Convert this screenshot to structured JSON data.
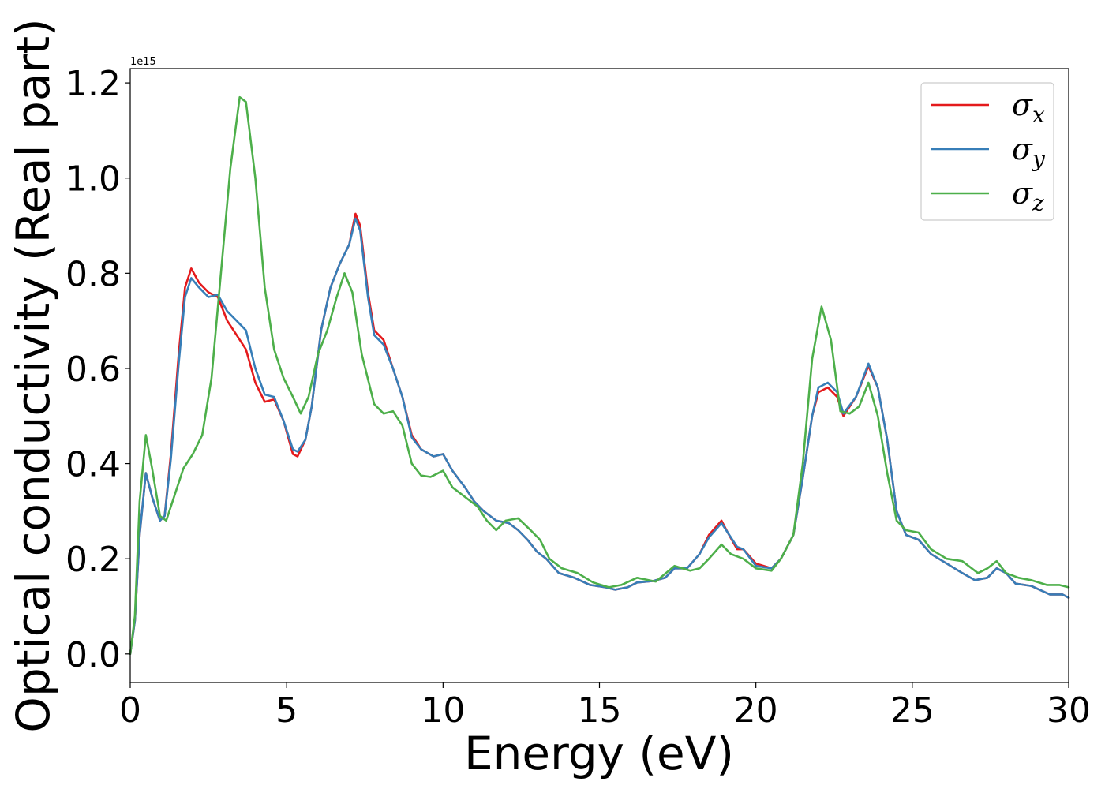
{
  "chart_data": {
    "type": "line",
    "title": "",
    "xlabel": "Energy (eV)",
    "ylabel": "Optical conductivity (Real part)",
    "y_offset_text": "1e15",
    "xlim": [
      0,
      30
    ],
    "ylim": [
      -0.06,
      1.23
    ],
    "x_ticks": [
      0,
      5,
      10,
      15,
      20,
      25,
      30
    ],
    "x_tick_labels": [
      "0",
      "5",
      "10",
      "15",
      "20",
      "25",
      "30"
    ],
    "y_ticks": [
      0.0,
      0.2,
      0.4,
      0.6,
      0.8,
      1.0,
      1.2
    ],
    "y_tick_labels": [
      "0.0",
      "0.2",
      "0.4",
      "0.6",
      "0.8",
      "1.0",
      "1.2"
    ],
    "grid": false,
    "legend_position": "top-right",
    "series": [
      {
        "name": "σx",
        "legend_base": "σ",
        "legend_sub": "x",
        "color": "#e41a1c",
        "points": [
          [
            0,
            0
          ],
          [
            0.15,
            0.07
          ],
          [
            0.3,
            0.25
          ],
          [
            0.5,
            0.38
          ],
          [
            0.7,
            0.33
          ],
          [
            0.95,
            0.28
          ],
          [
            1.1,
            0.29
          ],
          [
            1.3,
            0.42
          ],
          [
            1.55,
            0.63
          ],
          [
            1.75,
            0.77
          ],
          [
            1.95,
            0.81
          ],
          [
            2.2,
            0.78
          ],
          [
            2.5,
            0.76
          ],
          [
            2.8,
            0.75
          ],
          [
            3.1,
            0.7
          ],
          [
            3.4,
            0.67
          ],
          [
            3.7,
            0.64
          ],
          [
            4.0,
            0.57
          ],
          [
            4.3,
            0.53
          ],
          [
            4.6,
            0.535
          ],
          [
            4.9,
            0.49
          ],
          [
            5.2,
            0.42
          ],
          [
            5.35,
            0.415
          ],
          [
            5.6,
            0.45
          ],
          [
            5.8,
            0.52
          ],
          [
            6.1,
            0.68
          ],
          [
            6.4,
            0.77
          ],
          [
            6.7,
            0.82
          ],
          [
            7.0,
            0.86
          ],
          [
            7.2,
            0.925
          ],
          [
            7.35,
            0.9
          ],
          [
            7.6,
            0.76
          ],
          [
            7.8,
            0.68
          ],
          [
            8.1,
            0.66
          ],
          [
            8.4,
            0.6
          ],
          [
            8.7,
            0.54
          ],
          [
            9.0,
            0.46
          ],
          [
            9.3,
            0.43
          ],
          [
            9.7,
            0.415
          ],
          [
            10.0,
            0.42
          ],
          [
            10.3,
            0.385
          ],
          [
            10.7,
            0.35
          ],
          [
            11.0,
            0.32
          ],
          [
            11.3,
            0.3
          ],
          [
            11.7,
            0.28
          ],
          [
            12.1,
            0.275
          ],
          [
            12.4,
            0.26
          ],
          [
            12.7,
            0.24
          ],
          [
            13.0,
            0.215
          ],
          [
            13.3,
            0.2
          ],
          [
            13.7,
            0.17
          ],
          [
            14.2,
            0.16
          ],
          [
            14.7,
            0.145
          ],
          [
            15.2,
            0.14
          ],
          [
            15.5,
            0.135
          ],
          [
            15.9,
            0.14
          ],
          [
            16.2,
            0.15
          ],
          [
            16.7,
            0.153
          ],
          [
            17.1,
            0.16
          ],
          [
            17.4,
            0.18
          ],
          [
            17.8,
            0.18
          ],
          [
            18.2,
            0.21
          ],
          [
            18.5,
            0.25
          ],
          [
            18.9,
            0.28
          ],
          [
            19.1,
            0.255
          ],
          [
            19.4,
            0.22
          ],
          [
            19.6,
            0.22
          ],
          [
            20.0,
            0.19
          ],
          [
            20.5,
            0.18
          ],
          [
            20.8,
            0.2
          ],
          [
            21.2,
            0.25
          ],
          [
            21.5,
            0.37
          ],
          [
            21.8,
            0.5
          ],
          [
            22.0,
            0.55
          ],
          [
            22.3,
            0.56
          ],
          [
            22.6,
            0.54
          ],
          [
            22.8,
            0.5
          ],
          [
            23.2,
            0.54
          ],
          [
            23.6,
            0.605
          ],
          [
            23.9,
            0.56
          ],
          [
            24.2,
            0.45
          ],
          [
            24.5,
            0.3
          ],
          [
            24.8,
            0.25
          ],
          [
            25.2,
            0.24
          ],
          [
            25.6,
            0.21
          ],
          [
            26.1,
            0.19
          ],
          [
            26.6,
            0.17
          ],
          [
            27.0,
            0.155
          ],
          [
            27.4,
            0.16
          ],
          [
            27.7,
            0.18
          ],
          [
            28.0,
            0.17
          ],
          [
            28.3,
            0.148
          ],
          [
            28.8,
            0.143
          ],
          [
            29.4,
            0.125
          ],
          [
            29.8,
            0.125
          ],
          [
            30.0,
            0.118
          ]
        ]
      },
      {
        "name": "σy",
        "legend_base": "σ",
        "legend_sub": "y",
        "color": "#377eb8",
        "points": [
          [
            0,
            0
          ],
          [
            0.15,
            0.07
          ],
          [
            0.3,
            0.25
          ],
          [
            0.5,
            0.38
          ],
          [
            0.7,
            0.33
          ],
          [
            0.95,
            0.28
          ],
          [
            1.1,
            0.29
          ],
          [
            1.3,
            0.41
          ],
          [
            1.55,
            0.61
          ],
          [
            1.75,
            0.75
          ],
          [
            1.95,
            0.79
          ],
          [
            2.2,
            0.77
          ],
          [
            2.5,
            0.75
          ],
          [
            2.8,
            0.755
          ],
          [
            3.1,
            0.72
          ],
          [
            3.4,
            0.7
          ],
          [
            3.7,
            0.68
          ],
          [
            4.0,
            0.6
          ],
          [
            4.3,
            0.545
          ],
          [
            4.6,
            0.54
          ],
          [
            4.9,
            0.49
          ],
          [
            5.2,
            0.43
          ],
          [
            5.35,
            0.425
          ],
          [
            5.6,
            0.45
          ],
          [
            5.8,
            0.52
          ],
          [
            6.1,
            0.68
          ],
          [
            6.4,
            0.77
          ],
          [
            6.7,
            0.82
          ],
          [
            7.0,
            0.86
          ],
          [
            7.2,
            0.915
          ],
          [
            7.35,
            0.89
          ],
          [
            7.6,
            0.75
          ],
          [
            7.8,
            0.67
          ],
          [
            8.1,
            0.65
          ],
          [
            8.4,
            0.6
          ],
          [
            8.7,
            0.54
          ],
          [
            9.0,
            0.455
          ],
          [
            9.3,
            0.43
          ],
          [
            9.7,
            0.415
          ],
          [
            10.0,
            0.42
          ],
          [
            10.3,
            0.385
          ],
          [
            10.7,
            0.35
          ],
          [
            11.0,
            0.32
          ],
          [
            11.3,
            0.3
          ],
          [
            11.7,
            0.28
          ],
          [
            12.1,
            0.275
          ],
          [
            12.4,
            0.26
          ],
          [
            12.7,
            0.24
          ],
          [
            13.0,
            0.215
          ],
          [
            13.3,
            0.2
          ],
          [
            13.7,
            0.17
          ],
          [
            14.2,
            0.16
          ],
          [
            14.7,
            0.145
          ],
          [
            15.2,
            0.14
          ],
          [
            15.5,
            0.135
          ],
          [
            15.9,
            0.14
          ],
          [
            16.2,
            0.15
          ],
          [
            16.7,
            0.153
          ],
          [
            17.1,
            0.16
          ],
          [
            17.4,
            0.18
          ],
          [
            17.8,
            0.18
          ],
          [
            18.2,
            0.21
          ],
          [
            18.5,
            0.245
          ],
          [
            18.9,
            0.275
          ],
          [
            19.1,
            0.255
          ],
          [
            19.4,
            0.225
          ],
          [
            19.6,
            0.22
          ],
          [
            20.0,
            0.185
          ],
          [
            20.5,
            0.18
          ],
          [
            20.8,
            0.2
          ],
          [
            21.2,
            0.25
          ],
          [
            21.5,
            0.37
          ],
          [
            21.8,
            0.5
          ],
          [
            22.0,
            0.56
          ],
          [
            22.3,
            0.57
          ],
          [
            22.6,
            0.55
          ],
          [
            22.8,
            0.505
          ],
          [
            23.2,
            0.54
          ],
          [
            23.6,
            0.61
          ],
          [
            23.9,
            0.56
          ],
          [
            24.2,
            0.45
          ],
          [
            24.5,
            0.3
          ],
          [
            24.8,
            0.25
          ],
          [
            25.2,
            0.24
          ],
          [
            25.6,
            0.21
          ],
          [
            26.1,
            0.19
          ],
          [
            26.6,
            0.17
          ],
          [
            27.0,
            0.155
          ],
          [
            27.4,
            0.16
          ],
          [
            27.7,
            0.18
          ],
          [
            28.0,
            0.17
          ],
          [
            28.3,
            0.148
          ],
          [
            28.8,
            0.143
          ],
          [
            29.4,
            0.125
          ],
          [
            29.8,
            0.125
          ],
          [
            30.0,
            0.118
          ]
        ]
      },
      {
        "name": "σz",
        "legend_base": "σ",
        "legend_sub": "z",
        "color": "#4daf4a",
        "points": [
          [
            0,
            0
          ],
          [
            0.15,
            0.08
          ],
          [
            0.3,
            0.32
          ],
          [
            0.5,
            0.46
          ],
          [
            0.7,
            0.39
          ],
          [
            0.95,
            0.29
          ],
          [
            1.15,
            0.28
          ],
          [
            1.4,
            0.33
          ],
          [
            1.7,
            0.39
          ],
          [
            2.0,
            0.42
          ],
          [
            2.3,
            0.46
          ],
          [
            2.6,
            0.58
          ],
          [
            2.9,
            0.8
          ],
          [
            3.2,
            1.02
          ],
          [
            3.5,
            1.17
          ],
          [
            3.7,
            1.16
          ],
          [
            4.0,
            1.0
          ],
          [
            4.3,
            0.77
          ],
          [
            4.6,
            0.64
          ],
          [
            4.9,
            0.58
          ],
          [
            5.2,
            0.54
          ],
          [
            5.45,
            0.505
          ],
          [
            5.7,
            0.54
          ],
          [
            6.0,
            0.63
          ],
          [
            6.3,
            0.68
          ],
          [
            6.6,
            0.75
          ],
          [
            6.85,
            0.8
          ],
          [
            7.1,
            0.76
          ],
          [
            7.4,
            0.63
          ],
          [
            7.8,
            0.525
          ],
          [
            8.1,
            0.505
          ],
          [
            8.4,
            0.51
          ],
          [
            8.7,
            0.48
          ],
          [
            9.0,
            0.4
          ],
          [
            9.3,
            0.375
          ],
          [
            9.6,
            0.372
          ],
          [
            10.0,
            0.385
          ],
          [
            10.3,
            0.35
          ],
          [
            10.7,
            0.33
          ],
          [
            11.1,
            0.31
          ],
          [
            11.4,
            0.28
          ],
          [
            11.7,
            0.26
          ],
          [
            12.0,
            0.28
          ],
          [
            12.4,
            0.285
          ],
          [
            12.8,
            0.26
          ],
          [
            13.1,
            0.24
          ],
          [
            13.4,
            0.2
          ],
          [
            13.8,
            0.18
          ],
          [
            14.3,
            0.17
          ],
          [
            14.8,
            0.15
          ],
          [
            15.3,
            0.14
          ],
          [
            15.7,
            0.145
          ],
          [
            16.2,
            0.16
          ],
          [
            16.8,
            0.152
          ],
          [
            17.4,
            0.185
          ],
          [
            17.9,
            0.175
          ],
          [
            18.2,
            0.18
          ],
          [
            18.5,
            0.2
          ],
          [
            18.9,
            0.23
          ],
          [
            19.2,
            0.21
          ],
          [
            19.6,
            0.2
          ],
          [
            20.0,
            0.18
          ],
          [
            20.5,
            0.175
          ],
          [
            20.8,
            0.2
          ],
          [
            21.2,
            0.25
          ],
          [
            21.5,
            0.4
          ],
          [
            21.8,
            0.62
          ],
          [
            22.1,
            0.73
          ],
          [
            22.4,
            0.66
          ],
          [
            22.7,
            0.51
          ],
          [
            23.0,
            0.505
          ],
          [
            23.3,
            0.52
          ],
          [
            23.6,
            0.57
          ],
          [
            23.9,
            0.5
          ],
          [
            24.2,
            0.38
          ],
          [
            24.5,
            0.28
          ],
          [
            24.8,
            0.26
          ],
          [
            25.2,
            0.255
          ],
          [
            25.6,
            0.22
          ],
          [
            26.1,
            0.2
          ],
          [
            26.6,
            0.195
          ],
          [
            27.1,
            0.17
          ],
          [
            27.4,
            0.18
          ],
          [
            27.7,
            0.195
          ],
          [
            28.0,
            0.17
          ],
          [
            28.4,
            0.16
          ],
          [
            28.8,
            0.155
          ],
          [
            29.3,
            0.145
          ],
          [
            29.7,
            0.145
          ],
          [
            30.0,
            0.14
          ]
        ]
      }
    ]
  }
}
